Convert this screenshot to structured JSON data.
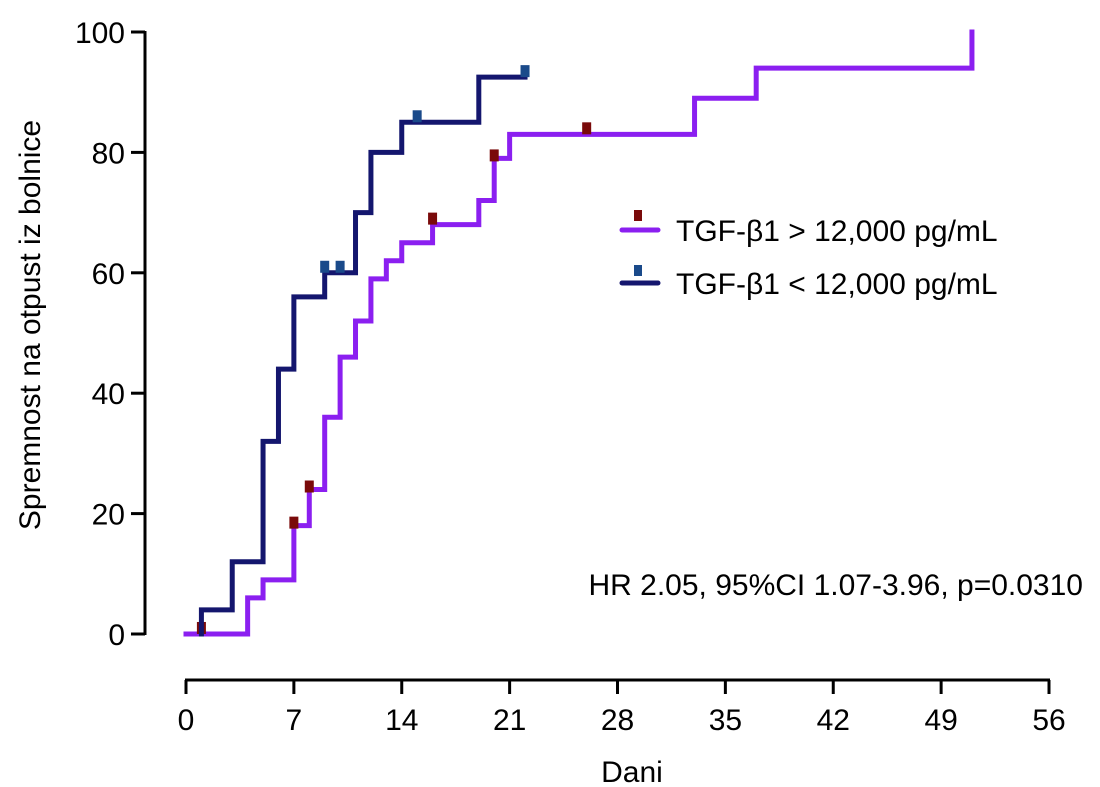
{
  "chart_data": {
    "type": "line",
    "subtype": "kaplan-meier-step",
    "title": "",
    "xlabel": "Dani",
    "ylabel": "Spremnost na otpust iz bolnice",
    "xlim": [
      0,
      56
    ],
    "ylim": [
      0,
      100
    ],
    "x_ticks": [
      0,
      7,
      14,
      21,
      28,
      35,
      42,
      49,
      56
    ],
    "y_ticks": [
      0,
      20,
      40,
      60,
      80,
      100
    ],
    "grid": false,
    "legend_position": "right",
    "annotation": "HR 2.05, 95%CI 1.07-3.96, p=0.0310",
    "series": [
      {
        "name": "TGF-β1 > 12,000 pg/mL",
        "color": "#8b1ff0",
        "censor_color": "#7a0a0a",
        "steps": [
          [
            0,
            0
          ],
          [
            4,
            6
          ],
          [
            5,
            9
          ],
          [
            7,
            18
          ],
          [
            8,
            24
          ],
          [
            9,
            36
          ],
          [
            10,
            46
          ],
          [
            11,
            52
          ],
          [
            12,
            59
          ],
          [
            13,
            62
          ],
          [
            14,
            65
          ],
          [
            16,
            68
          ],
          [
            19,
            72
          ],
          [
            20,
            79
          ],
          [
            21,
            83
          ],
          [
            33,
            89
          ],
          [
            37,
            94
          ],
          [
            51,
            100
          ]
        ],
        "x_end": 51,
        "censored": [
          [
            1,
            1
          ],
          [
            7,
            18.5
          ],
          [
            8,
            24.5
          ],
          [
            16,
            69
          ],
          [
            20,
            79.5
          ],
          [
            26,
            84
          ]
        ]
      },
      {
        "name": "TGF-β1 < 12,000 pg/mL",
        "color": "#14166e",
        "censor_color": "#1a4a8a",
        "steps": [
          [
            1,
            4
          ],
          [
            3,
            12
          ],
          [
            5,
            32
          ],
          [
            6,
            44
          ],
          [
            7,
            56
          ],
          [
            9,
            60
          ],
          [
            11,
            70
          ],
          [
            12,
            80
          ],
          [
            14,
            85
          ],
          [
            19,
            92.5
          ]
        ],
        "x_start": 1,
        "x_end": 22,
        "censored": [
          [
            9,
            61
          ],
          [
            10,
            61
          ],
          [
            15,
            86
          ],
          [
            22,
            93.5
          ]
        ]
      }
    ]
  }
}
